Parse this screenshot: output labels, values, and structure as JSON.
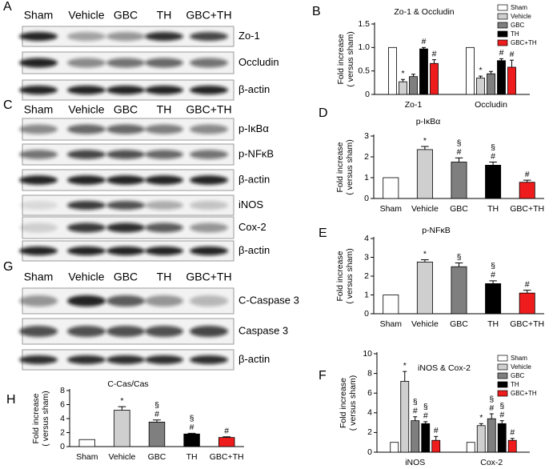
{
  "blots": [
    {
      "label": "A",
      "lanes": [
        "Sham",
        "Vehicle",
        "GBC",
        "TH",
        "GBC+TH"
      ],
      "rows": [
        "Zo-1",
        "Occludin",
        "β-actin"
      ]
    },
    {
      "label": "C",
      "lanes": [
        "Sham",
        "Vehicle",
        "GBC",
        "TH",
        "GBC+TH"
      ],
      "rows": [
        "p-IκBα",
        "p-NFκB",
        "β-actin",
        "iNOS",
        "Cox-2",
        "β-actin"
      ]
    },
    {
      "label": "G",
      "lanes": [
        "Sham",
        "Vehicle",
        "GBC",
        "TH",
        "GBC+TH"
      ],
      "rows": [
        "C-Caspase 3",
        "Caspase 3",
        "β-actin"
      ]
    }
  ],
  "chart_data": [
    {
      "type": "grouped-bar",
      "label": "B",
      "title": "Zo-1 & Occludin",
      "y_label": "Fold increase\n( versus sham)",
      "categories": [
        "Zo-1",
        "Occludin"
      ],
      "series": [
        {
          "name": "Sham",
          "color": "#ffffff",
          "values": [
            1,
            1
          ],
          "errors": [
            0,
            0
          ],
          "annotations": [
            [],
            []
          ]
        },
        {
          "name": "Vehicle",
          "color": "#cfcfcf",
          "values": [
            0.27,
            0.35
          ],
          "errors": [
            0.05,
            0.04
          ],
          "annotations": [
            [
              "*"
            ],
            [
              "*"
            ]
          ]
        },
        {
          "name": "GBC",
          "color": "#7f7f7f",
          "values": [
            0.38,
            0.44
          ],
          "errors": [
            0.05,
            0.05
          ],
          "annotations": [
            [],
            []
          ]
        },
        {
          "name": "TH",
          "color": "#000000",
          "values": [
            0.97,
            0.72
          ],
          "errors": [
            0.03,
            0.04
          ],
          "annotations": [
            [
              "#"
            ],
            [
              "#"
            ]
          ]
        },
        {
          "name": "GBC+TH",
          "color": "#ee1c1c",
          "values": [
            0.66,
            0.58
          ],
          "errors": [
            0.08,
            0.15
          ],
          "annotations": [
            [
              "#"
            ],
            [
              "#"
            ]
          ]
        }
      ],
      "ylim": [
        0,
        1.5
      ],
      "yticks": [
        0,
        0.5,
        {
          "value": 1,
          "label": "1.0"
        },
        1.5
      ]
    },
    {
      "type": "bar",
      "label": "D",
      "title": "p-IκBα",
      "y_label": "Fold increase\n( versus sham)",
      "categories": [
        "Sham",
        "Vehicle",
        "GBC",
        "TH",
        "GBC+TH"
      ],
      "colors": [
        "#ffffff",
        "#cfcfcf",
        "#7f7f7f",
        "#000000",
        "#ee1c1c"
      ],
      "values": [
        1,
        2.35,
        1.75,
        1.6,
        0.78
      ],
      "errors": [
        0,
        0.15,
        0.2,
        0.15,
        0.1
      ],
      "annotations": [
        [],
        [
          "*"
        ],
        [
          "§",
          "#"
        ],
        [
          "§",
          "#"
        ],
        [
          "#"
        ]
      ],
      "ylim": [
        0,
        3
      ],
      "yticks": [
        0,
        1,
        2,
        3
      ]
    },
    {
      "type": "bar",
      "label": "E",
      "title": "p-NFκB",
      "y_label": "Fold increase\n( versus sham)",
      "categories": [
        "Sham",
        "Vehicle",
        "GBC",
        "TH",
        "GBC+TH"
      ],
      "colors": [
        "#ffffff",
        "#cfcfcf",
        "#7f7f7f",
        "#000000",
        "#ee1c1c"
      ],
      "values": [
        1,
        2.75,
        2.5,
        1.6,
        1.1
      ],
      "errors": [
        0,
        0.12,
        0.2,
        0.15,
        0.15
      ],
      "annotations": [
        [],
        [
          "*"
        ],
        [
          "§"
        ],
        [
          "§",
          "#"
        ],
        [
          "#"
        ]
      ],
      "ylim": [
        0,
        4
      ],
      "yticks": [
        0,
        1,
        2,
        3,
        4
      ]
    },
    {
      "type": "grouped-bar",
      "label": "F",
      "title": "iNOS & Cox-2",
      "y_label": "Fold increase\n( versus sham)",
      "categories": [
        "iNOS",
        "Cox-2"
      ],
      "series": [
        {
          "name": "Sham",
          "color": "#ffffff",
          "values": [
            1,
            1
          ],
          "errors": [
            0,
            0
          ],
          "annotations": [
            [],
            []
          ]
        },
        {
          "name": "Vehicle",
          "color": "#cfcfcf",
          "values": [
            7.2,
            2.7
          ],
          "errors": [
            1.0,
            0.2
          ],
          "annotations": [
            [
              "*"
            ],
            [
              "*"
            ]
          ]
        },
        {
          "name": "GBC",
          "color": "#7f7f7f",
          "values": [
            3.2,
            3.4
          ],
          "errors": [
            0.4,
            0.5
          ],
          "annotations": [
            [
              "§",
              "#"
            ],
            [
              "§",
              "#"
            ]
          ]
        },
        {
          "name": "TH",
          "color": "#000000",
          "values": [
            2.9,
            2.9
          ],
          "errors": [
            0.2,
            0.3
          ],
          "annotations": [
            [
              "§",
              "#"
            ],
            [
              "§",
              "#"
            ]
          ]
        },
        {
          "name": "GBC+TH",
          "color": "#ee1c1c",
          "values": [
            1.2,
            1.2
          ],
          "errors": [
            0.4,
            0.2
          ],
          "annotations": [
            [
              "#"
            ],
            [
              "#"
            ]
          ]
        }
      ],
      "ylim": [
        0,
        10
      ],
      "yticks": [
        0,
        2,
        4,
        6,
        8,
        10
      ]
    },
    {
      "type": "bar",
      "label": "H",
      "title": "C-Cas/Cas",
      "y_label": "Fold increase\n( versus sham)",
      "categories": [
        "Sham",
        "Vehicle",
        "GBC",
        "TH",
        "GBC+TH"
      ],
      "colors": [
        "#ffffff",
        "#cfcfcf",
        "#7f7f7f",
        "#000000",
        "#ee1c1c"
      ],
      "values": [
        1,
        5.2,
        3.5,
        1.8,
        1.3
      ],
      "errors": [
        0,
        0.5,
        0.3,
        0.1,
        0.1
      ],
      "annotations": [
        [],
        [
          "*"
        ],
        [
          "§",
          "#"
        ],
        [
          "§",
          "#"
        ],
        [
          "#"
        ]
      ],
      "ylim": [
        0,
        8
      ],
      "yticks": [
        0,
        2,
        4,
        6,
        8
      ]
    }
  ]
}
